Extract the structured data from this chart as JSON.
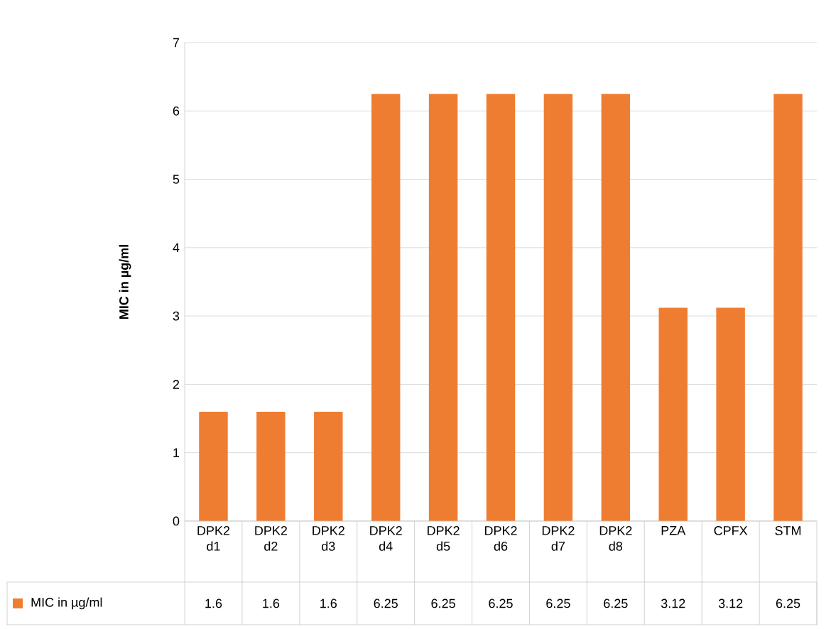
{
  "chart_data": {
    "type": "bar",
    "ylabel": "MIC in µg/ml",
    "categories": [
      "DPK2 d1",
      "DPK2 d2",
      "DPK2 d3",
      "DPK2 d4",
      "DPK2 d5",
      "DPK2 d6",
      "DPK2 d7",
      "DPK2 d8",
      "PZA",
      "CPFX",
      "STM"
    ],
    "series": [
      {
        "name": "MIC in µg/ml",
        "color": "#ef7d31",
        "values": [
          1.6,
          1.6,
          1.6,
          6.25,
          6.25,
          6.25,
          6.25,
          6.25,
          3.12,
          3.12,
          6.25
        ]
      }
    ],
    "ylim": [
      0,
      7
    ],
    "yticks": [
      0,
      1,
      2,
      3,
      4,
      5,
      6,
      7
    ],
    "grid": "y",
    "legend": "bottom",
    "data_labels": true
  }
}
